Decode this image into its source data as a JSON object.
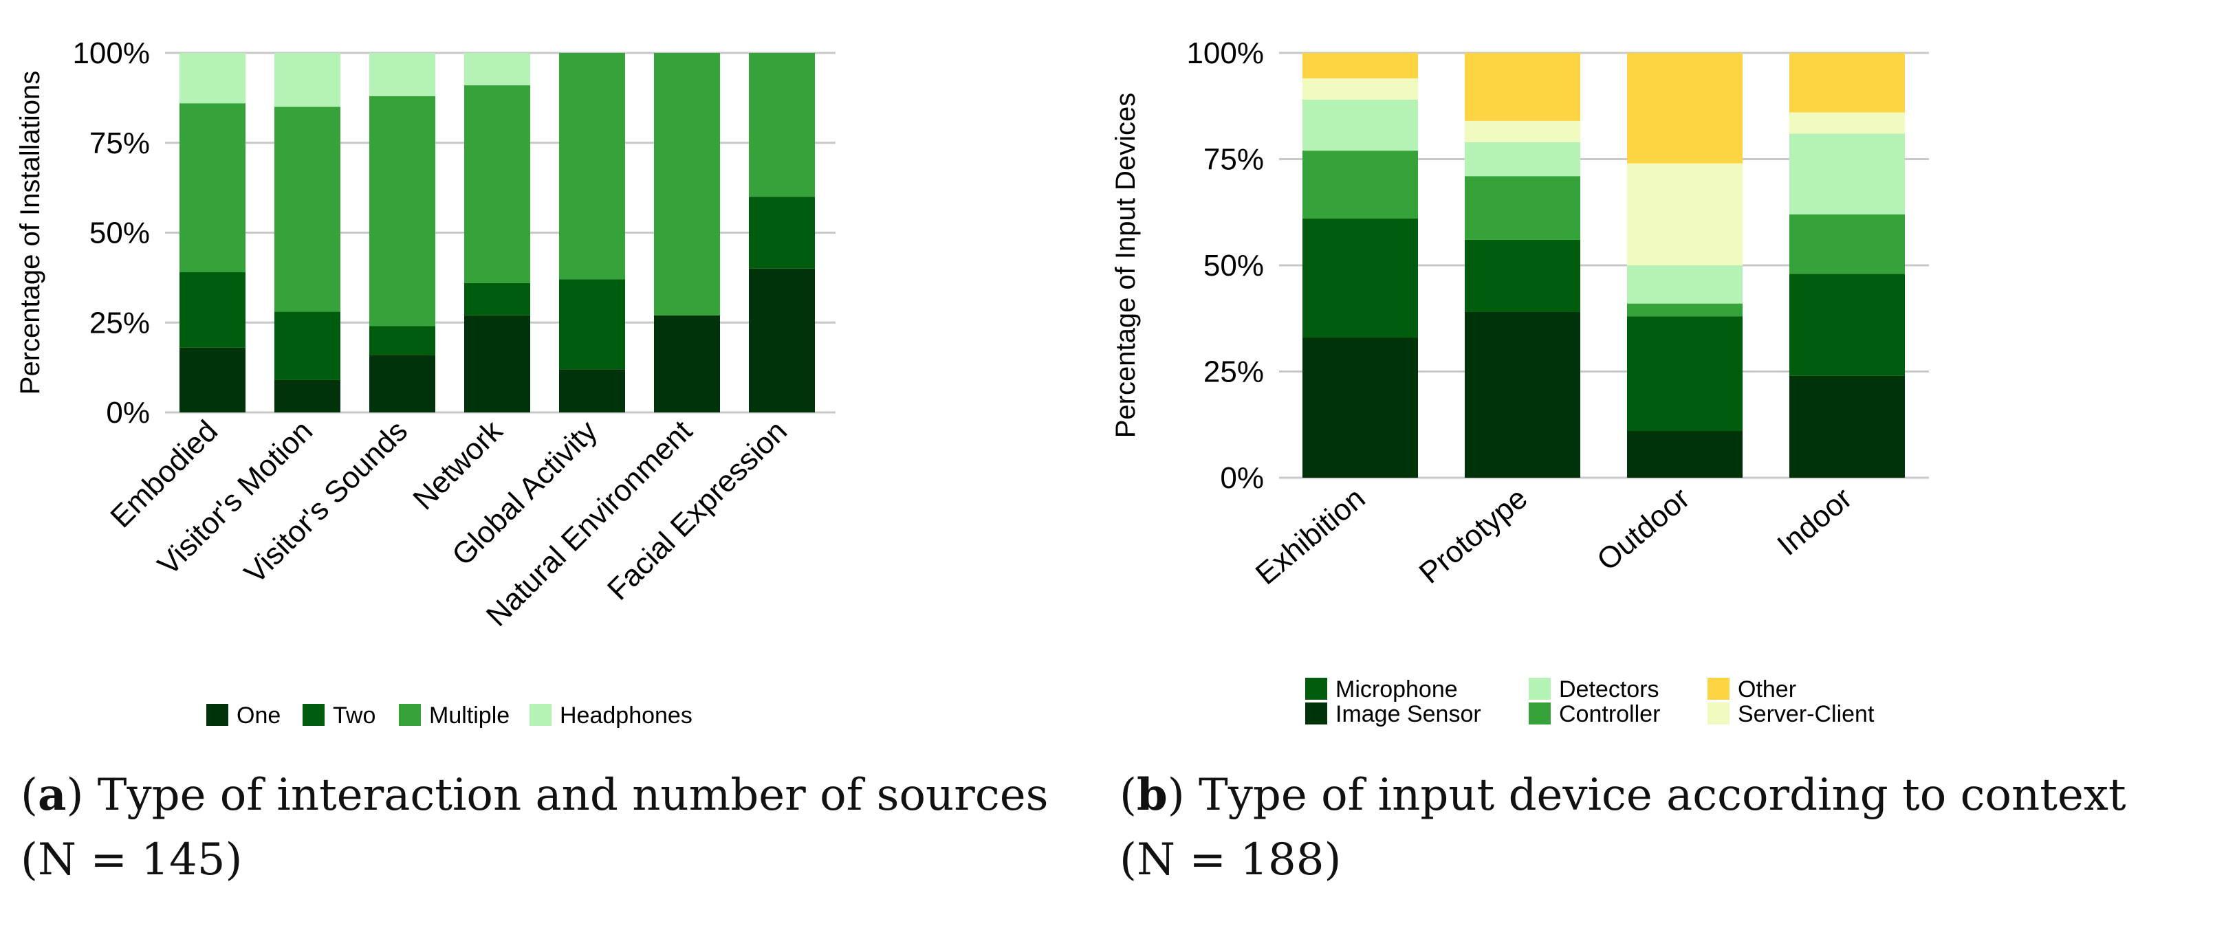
{
  "colors": {
    "one": "#00330a",
    "two": "#005c0d",
    "multiple": "#36a33a",
    "headphones": "#b5f2b5",
    "image_sensor": "#00330a",
    "microphone": "#005c0d",
    "controller": "#36a33a",
    "detectors": "#b5f2b5",
    "server_client": "#f2fbbf",
    "other": "#fdd442",
    "grid": "#c8c8c8"
  },
  "captions": {
    "a": {
      "letter": "a",
      "line1": "Type of interaction and number of sources",
      "line2": "(N =  145)"
    },
    "b": {
      "letter": "b",
      "line1": "Type of input device according to context",
      "line2": "(N = 188)"
    }
  },
  "chart_data": [
    {
      "type": "bar",
      "stacked": true,
      "title": "",
      "xlabel": "",
      "ylabel": "Percentage of Installations",
      "ylim": [
        0,
        100
      ],
      "y_ticks": [
        "0%",
        "25%",
        "50%",
        "75%",
        "100%"
      ],
      "grid": true,
      "legend_position": "bottom",
      "categories": [
        "Embodied",
        "Visitor's Motion",
        "Visitor's Sounds",
        "Network",
        "Global Activity",
        "Natural Environment",
        "Facial Expression"
      ],
      "series": [
        {
          "name": "One",
          "color_key": "one",
          "values": [
            18,
            9,
            16,
            27,
            12,
            27,
            40
          ]
        },
        {
          "name": "Two",
          "color_key": "two",
          "values": [
            21,
            19,
            8,
            9,
            25,
            0,
            20
          ]
        },
        {
          "name": "Multiple",
          "color_key": "multiple",
          "values": [
            47,
            57,
            64,
            55,
            63,
            73,
            40
          ]
        },
        {
          "name": "Headphones",
          "color_key": "headphones",
          "values": [
            14,
            15,
            12,
            9,
            0,
            0,
            0
          ]
        }
      ],
      "legend_rows": [
        [
          "One",
          "Two",
          "Multiple",
          "Headphones"
        ]
      ]
    },
    {
      "type": "bar",
      "stacked": true,
      "title": "",
      "xlabel": "",
      "ylabel": "Percentage of Input Devices",
      "ylim": [
        0,
        100
      ],
      "y_ticks": [
        "0%",
        "25%",
        "50%",
        "75%",
        "100%"
      ],
      "grid": true,
      "legend_position": "bottom",
      "categories": [
        "Exhibition",
        "Prototype",
        "Outdoor",
        "Indoor"
      ],
      "series": [
        {
          "name": "Image Sensor",
          "color_key": "image_sensor",
          "values": [
            33,
            39,
            11,
            24
          ]
        },
        {
          "name": "Microphone",
          "color_key": "microphone",
          "values": [
            28,
            17,
            27,
            24
          ]
        },
        {
          "name": "Controller",
          "color_key": "controller",
          "values": [
            16,
            15,
            3,
            14
          ]
        },
        {
          "name": "Detectors",
          "color_key": "detectors",
          "values": [
            12,
            8,
            9,
            19
          ]
        },
        {
          "name": "Server-Client",
          "color_key": "server_client",
          "values": [
            5,
            5,
            24,
            5
          ]
        },
        {
          "name": "Other",
          "color_key": "other",
          "values": [
            6,
            16,
            26,
            14
          ]
        }
      ],
      "legend_rows": [
        [
          "Microphone",
          "Detectors",
          "Other"
        ],
        [
          "Image Sensor",
          "Controller",
          "Server-Client"
        ]
      ]
    }
  ]
}
